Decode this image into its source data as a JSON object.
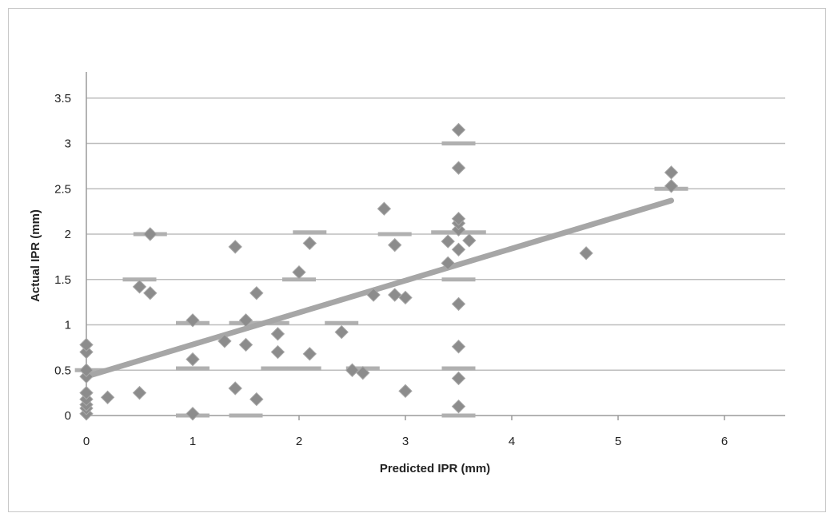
{
  "chart_data": {
    "type": "scatter",
    "title": "",
    "xlabel": "Predicted IPR (mm)",
    "ylabel": "Actual IPR (mm)",
    "xlim": [
      0,
      6.5
    ],
    "ylim": [
      0,
      3.5
    ],
    "xticks": [
      0,
      1,
      2,
      3,
      4,
      5,
      6
    ],
    "xtick_labels": [
      "0",
      "1",
      "2",
      "3",
      "4",
      "5",
      "6"
    ],
    "yticks": [
      0,
      0.5,
      1,
      1.5,
      2,
      2.5,
      3,
      3.5
    ],
    "ytick_labels": [
      "0",
      "0.5",
      "1",
      "1.5",
      "2",
      "2.5",
      "3",
      "3.5"
    ],
    "grid": {
      "horizontal": true,
      "vertical": false
    },
    "legend": "none",
    "colors": {
      "points": "#8c8c8c",
      "trendline": "#a6a6a6",
      "gridline": "#bdbdbd",
      "dash_marks": "#b0b0b0"
    },
    "series": [
      {
        "marker": "diamond",
        "points": [
          {
            "x": 0,
            "y": 0.02
          },
          {
            "x": 0,
            "y": 0.08
          },
          {
            "x": 0,
            "y": 0.12
          },
          {
            "x": 0,
            "y": 0.18
          },
          {
            "x": 0,
            "y": 0.25
          },
          {
            "x": 0,
            "y": 0.43
          },
          {
            "x": 0,
            "y": 0.5
          },
          {
            "x": 0,
            "y": 0.7
          },
          {
            "x": 0,
            "y": 0.78
          },
          {
            "x": 0.2,
            "y": 0.2
          },
          {
            "x": 0.5,
            "y": 0.25
          },
          {
            "x": 0.5,
            "y": 1.42
          },
          {
            "x": 0.6,
            "y": 1.35
          },
          {
            "x": 0.6,
            "y": 2.0
          },
          {
            "x": 1,
            "y": 0.02
          },
          {
            "x": 1,
            "y": 0.62
          },
          {
            "x": 1,
            "y": 1.05
          },
          {
            "x": 1.3,
            "y": 0.82
          },
          {
            "x": 1.4,
            "y": 0.3
          },
          {
            "x": 1.4,
            "y": 1.86
          },
          {
            "x": 1.5,
            "y": 0.78
          },
          {
            "x": 1.5,
            "y": 1.05
          },
          {
            "x": 1.6,
            "y": 0.18
          },
          {
            "x": 1.6,
            "y": 1.35
          },
          {
            "x": 1.8,
            "y": 0.7
          },
          {
            "x": 1.8,
            "y": 0.9
          },
          {
            "x": 2.0,
            "y": 1.58
          },
          {
            "x": 2.1,
            "y": 0.68
          },
          {
            "x": 2.1,
            "y": 1.9
          },
          {
            "x": 2.4,
            "y": 0.92
          },
          {
            "x": 2.5,
            "y": 0.5
          },
          {
            "x": 2.6,
            "y": 0.47
          },
          {
            "x": 2.7,
            "y": 1.33
          },
          {
            "x": 2.8,
            "y": 2.28
          },
          {
            "x": 2.9,
            "y": 1.33
          },
          {
            "x": 2.9,
            "y": 1.88
          },
          {
            "x": 3.0,
            "y": 0.27
          },
          {
            "x": 3.0,
            "y": 1.3
          },
          {
            "x": 3.4,
            "y": 1.68
          },
          {
            "x": 3.4,
            "y": 1.92
          },
          {
            "x": 3.5,
            "y": 0.1
          },
          {
            "x": 3.5,
            "y": 0.41
          },
          {
            "x": 3.5,
            "y": 0.76
          },
          {
            "x": 3.5,
            "y": 1.23
          },
          {
            "x": 3.5,
            "y": 1.83
          },
          {
            "x": 3.5,
            "y": 2.05
          },
          {
            "x": 3.5,
            "y": 2.12
          },
          {
            "x": 3.5,
            "y": 2.17
          },
          {
            "x": 3.5,
            "y": 2.73
          },
          {
            "x": 3.5,
            "y": 3.15
          },
          {
            "x": 3.6,
            "y": 1.93
          },
          {
            "x": 4.7,
            "y": 1.79
          },
          {
            "x": 5.5,
            "y": 2.53
          },
          {
            "x": 5.5,
            "y": 2.68
          }
        ]
      }
    ],
    "dash_marks": [
      {
        "x": 0.05,
        "y": 0.5
      },
      {
        "x": 0.5,
        "y": 1.5
      },
      {
        "x": 0.6,
        "y": 2.0
      },
      {
        "x": 1.0,
        "y": 0.0
      },
      {
        "x": 1.0,
        "y": 0.52
      },
      {
        "x": 1.0,
        "y": 1.02
      },
      {
        "x": 1.5,
        "y": 0.0
      },
      {
        "x": 1.5,
        "y": 1.02
      },
      {
        "x": 1.75,
        "y": 1.02
      },
      {
        "x": 1.8,
        "y": 0.52
      },
      {
        "x": 2.05,
        "y": 0.52
      },
      {
        "x": 2.0,
        "y": 1.5
      },
      {
        "x": 2.1,
        "y": 2.02
      },
      {
        "x": 2.4,
        "y": 1.02
      },
      {
        "x": 2.6,
        "y": 0.52
      },
      {
        "x": 2.9,
        "y": 2.0
      },
      {
        "x": 3.4,
        "y": 2.02
      },
      {
        "x": 3.6,
        "y": 2.02
      },
      {
        "x": 3.5,
        "y": 0.0
      },
      {
        "x": 3.5,
        "y": 0.52
      },
      {
        "x": 3.5,
        "y": 1.5
      },
      {
        "x": 3.5,
        "y": 3.0
      },
      {
        "x": 5.5,
        "y": 2.5
      }
    ],
    "trendline": {
      "type": "linear",
      "x": [
        0,
        5.5
      ],
      "y": [
        0.43,
        2.37
      ]
    }
  }
}
